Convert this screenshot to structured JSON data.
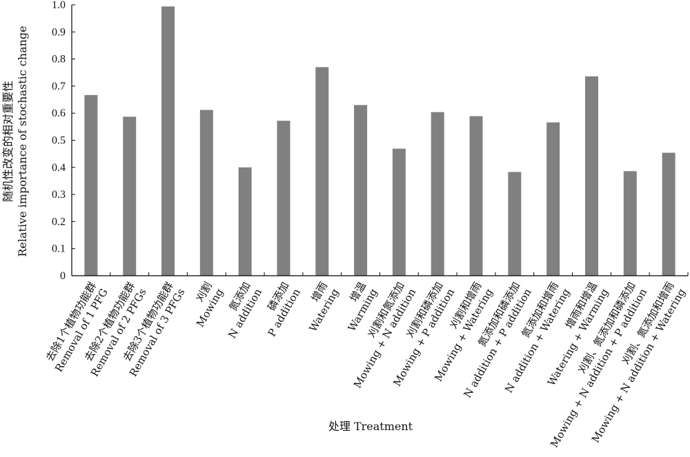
{
  "chart_data": {
    "type": "bar",
    "xlabel": "处理 Treatment",
    "ylabel_cn": "随机性改变的相对重要性",
    "ylabel_en": "Relative importance of stochastic change",
    "ylim": [
      0,
      1.0
    ],
    "yticks": [
      "0",
      "0.1",
      "0.2",
      "0.3",
      "0.4",
      "0.5",
      "0.6",
      "0.7",
      "0.8",
      "0.9",
      "1.0"
    ],
    "grid": false,
    "bar_color": "#808080",
    "categories": [
      {
        "cn": "去除1个植物功能群",
        "en": "Removal of 1 PFG"
      },
      {
        "cn": "去除2个植物功能群",
        "en": "Removal of 2 PFGs"
      },
      {
        "cn": "去除3个植物功能群",
        "en": "Removal of 3 PFGs"
      },
      {
        "cn": "刈割",
        "en": "Mowing"
      },
      {
        "cn": "氮添加",
        "en": "N addition"
      },
      {
        "cn": "磷添加",
        "en": "P addition"
      },
      {
        "cn": "增雨",
        "en": "Watering"
      },
      {
        "cn": "增温",
        "en": "Warming"
      },
      {
        "cn": "刈割和氮添加",
        "en": "Mowing + N addition"
      },
      {
        "cn": "刈割和磷添加",
        "en": "Mowing + P addition"
      },
      {
        "cn": "刈割和增雨",
        "en": "Mowing + Watering"
      },
      {
        "cn": "氮添加和磷添加",
        "en": "N addition + P addition"
      },
      {
        "cn": "氮添加和增雨",
        "en": "N addition + Watering"
      },
      {
        "cn": "增雨和增温",
        "en": "Watering + Warming"
      },
      {
        "cn": "刈割、氮添加和磷添加",
        "en": "Mowing + N addition + P addition"
      },
      {
        "cn": "刈割、氮添加和增雨",
        "en": "Mowing + N addition + Watering"
      }
    ],
    "values": [
      0.667,
      0.587,
      0.994,
      0.612,
      0.4,
      0.572,
      0.77,
      0.63,
      0.469,
      0.604,
      0.589,
      0.383,
      0.566,
      0.736,
      0.386,
      0.454
    ]
  }
}
